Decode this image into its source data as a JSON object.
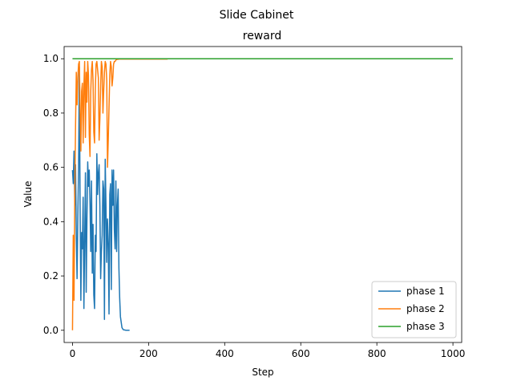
{
  "chart_data": {
    "type": "line",
    "suptitle": "Slide Cabinet",
    "title": "reward",
    "xlabel": "Step",
    "ylabel": "Value",
    "xlim": [
      -22,
      1023
    ],
    "ylim": [
      -0.045,
      1.045
    ],
    "xticks": [
      0,
      200,
      400,
      600,
      800,
      1000
    ],
    "xtick_labels": [
      "0",
      "200",
      "400",
      "600",
      "800",
      "1000"
    ],
    "yticks": [
      0.0,
      0.2,
      0.4,
      0.6,
      0.8,
      1.0
    ],
    "ytick_labels": [
      "0.0",
      "0.2",
      "0.4",
      "0.6",
      "0.8",
      "1.0"
    ],
    "grid": false,
    "legend_position": "lower-right",
    "series": [
      {
        "name": "phase 1",
        "color": "#1f77b4",
        "x": [
          0,
          2,
          4,
          6,
          8,
          10,
          12,
          14,
          16,
          18,
          20,
          22,
          24,
          26,
          28,
          30,
          32,
          34,
          36,
          38,
          40,
          42,
          44,
          46,
          48,
          50,
          52,
          54,
          56,
          58,
          60,
          62,
          64,
          66,
          68,
          70,
          72,
          74,
          76,
          78,
          80,
          82,
          84,
          86,
          88,
          90,
          92,
          94,
          96,
          98,
          100,
          102,
          104,
          106,
          108,
          110,
          112,
          114,
          116,
          118,
          120,
          122,
          124,
          126,
          128,
          130,
          132,
          134,
          136,
          138,
          140,
          142,
          144,
          146,
          148,
          150
        ],
        "y": [
          0.59,
          0.54,
          0.66,
          0.46,
          0.61,
          0.35,
          0.19,
          0.42,
          0.6,
          0.97,
          0.45,
          0.11,
          0.36,
          0.3,
          0.49,
          0.08,
          0.33,
          0.58,
          0.14,
          0.41,
          0.62,
          0.53,
          0.59,
          0.47,
          0.29,
          0.55,
          0.21,
          0.39,
          0.13,
          0.08,
          0.35,
          0.29,
          0.65,
          0.5,
          0.58,
          0.61,
          0.46,
          0.19,
          0.29,
          0.35,
          0.55,
          0.52,
          0.04,
          0.63,
          0.46,
          0.25,
          0.41,
          0.32,
          0.06,
          0.5,
          0.54,
          0.15,
          0.59,
          0.46,
          0.59,
          0.37,
          0.3,
          0.55,
          0.29,
          0.46,
          0.52,
          0.23,
          0.12,
          0.05,
          0.03,
          0.01,
          0.005,
          0.002,
          0.001,
          0.001,
          0.0,
          0.0,
          0.0,
          0.0,
          0.0,
          0.0
        ]
      },
      {
        "name": "phase 2",
        "color": "#ff7f0e",
        "x": [
          0,
          2,
          4,
          6,
          8,
          10,
          12,
          14,
          16,
          18,
          20,
          22,
          24,
          26,
          28,
          30,
          32,
          34,
          36,
          38,
          40,
          42,
          44,
          46,
          48,
          50,
          52,
          54,
          56,
          58,
          60,
          62,
          64,
          66,
          68,
          70,
          72,
          74,
          76,
          78,
          80,
          82,
          84,
          86,
          88,
          90,
          92,
          94,
          96,
          98,
          100,
          102,
          104,
          106,
          108,
          110,
          112,
          114,
          116,
          118,
          120,
          125,
          130,
          140,
          150,
          160,
          180,
          200,
          225,
          250
        ],
        "y": [
          0.0,
          0.35,
          0.11,
          0.5,
          0.75,
          0.95,
          0.83,
          0.93,
          0.98,
          0.99,
          0.8,
          0.66,
          0.88,
          0.91,
          0.69,
          0.9,
          0.99,
          0.71,
          0.95,
          0.84,
          0.99,
          0.94,
          0.72,
          0.64,
          0.88,
          0.96,
          0.99,
          0.92,
          0.73,
          0.69,
          0.89,
          0.98,
          0.99,
          0.96,
          0.93,
          0.7,
          0.78,
          0.9,
          0.99,
          0.97,
          0.8,
          0.88,
          0.95,
          0.99,
          0.98,
          0.92,
          0.6,
          0.7,
          0.82,
          0.94,
          0.99,
          0.97,
          0.9,
          0.93,
          0.98,
          0.99,
          0.99,
          0.995,
          0.997,
          0.998,
          0.998,
          0.999,
          0.999,
          0.999,
          0.999,
          0.999,
          0.999,
          0.999,
          0.999,
          0.999
        ]
      },
      {
        "name": "phase 3",
        "color": "#2ca02c",
        "x": [
          0,
          1000
        ],
        "y": [
          1.0,
          1.0
        ]
      }
    ]
  }
}
